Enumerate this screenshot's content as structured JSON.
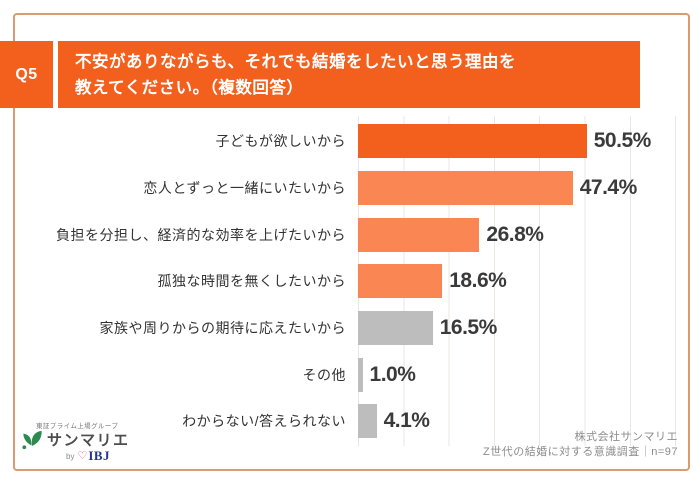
{
  "colors": {
    "accent_dark": "#F3601D",
    "accent_light": "#FA8654",
    "bar_gray": "#BDBDBD",
    "frame_border": "#DB9B70",
    "gridline": "#ECE5E0",
    "value_text": "#3A3A3A",
    "credit_gray": "#8C8C8C",
    "logo_green": "#2E8B50",
    "ibj_blue": "#24348C",
    "heart_pink": "#E23A6E"
  },
  "icons": {
    "heart": "♡"
  },
  "question": {
    "number": "Q5",
    "line1": "不安がありながらも、それでも結婚をしたいと思う理由を",
    "line2": "教えてください。（複数回答）"
  },
  "chart_data": {
    "type": "bar",
    "orientation": "horizontal",
    "title": "不安がありながらも、それでも結婚をしたいと思う理由を教えてください。（複数回答）",
    "categories": [
      "子どもが欲しいから",
      "恋人とずっと一緒にいたいから",
      "負担を分担し、経済的な効率を上げたいから",
      "孤独な時間を無くしたいから",
      "家族や周りからの期待に応えたいから",
      "その他",
      "わからない/答えられない"
    ],
    "values": [
      50.5,
      47.4,
      26.8,
      18.6,
      16.5,
      1.0,
      4.1
    ],
    "value_labels": [
      "50.5%",
      "47.4%",
      "26.8%",
      "18.6%",
      "16.5%",
      "1.0%",
      "4.1%"
    ],
    "bar_colors": [
      "#F3601D",
      "#FA8654",
      "#FA8654",
      "#FA8654",
      "#BDBDBD",
      "#BDBDBD",
      "#BDBDBD"
    ],
    "xlim": [
      0,
      70
    ],
    "gridline_interval": 10,
    "grid": true,
    "legend": false
  },
  "footer": {
    "logo": {
      "group_text": "東証プライム上場グループ",
      "brand": "サンマリエ",
      "by_text": "by",
      "ibj_text": "IBJ"
    },
    "credit_line1": "株式会社サンマリエ",
    "credit_line2": "Z世代の結婚に対する意識調査｜n=97"
  }
}
